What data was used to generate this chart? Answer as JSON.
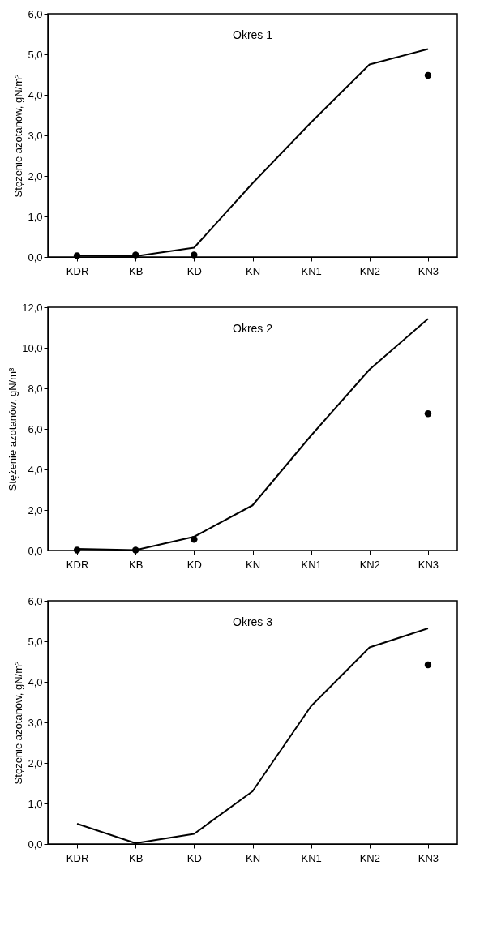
{
  "chart_data": [
    {
      "type": "line",
      "title": "Okres 1",
      "ylabel": "Stężenie azotanów, gN/m³",
      "categories": [
        "KDR",
        "KB",
        "KD",
        "KN",
        "KN1",
        "KN2",
        "KN3"
      ],
      "ylim": [
        0,
        6
      ],
      "yticks": [
        {
          "value": 0,
          "label": "0,0"
        },
        {
          "value": 1,
          "label": "1,0"
        },
        {
          "value": 2,
          "label": "2,0"
        },
        {
          "value": 3,
          "label": "3,0"
        },
        {
          "value": 4,
          "label": "4,0"
        },
        {
          "value": 5,
          "label": "5,0"
        },
        {
          "value": 6,
          "label": "6,0"
        }
      ],
      "grid": false,
      "series": [
        {
          "type": "line",
          "color": "#000000",
          "values": [
            0.03,
            0.02,
            0.23,
            1.82,
            3.32,
            4.75,
            5.13
          ]
        },
        {
          "type": "scatter",
          "marker": "circle",
          "color": "#000000",
          "values": [
            0.03,
            0.05,
            0.05,
            null,
            null,
            null,
            4.48
          ]
        }
      ]
    },
    {
      "type": "line",
      "title": "Okres 2",
      "ylabel": "Stężenie azotanów, gN/m³",
      "categories": [
        "KDR",
        "KB",
        "KD",
        "KN",
        "KN1",
        "KN2",
        "KN3"
      ],
      "ylim": [
        0,
        12
      ],
      "yticks": [
        {
          "value": 0,
          "label": "0,0"
        },
        {
          "value": 2,
          "label": "2,0"
        },
        {
          "value": 4,
          "label": "4,0"
        },
        {
          "value": 6,
          "label": "6,0"
        },
        {
          "value": 8,
          "label": "8,0"
        },
        {
          "value": 10,
          "label": "10,0"
        },
        {
          "value": 12,
          "label": "12,0"
        }
      ],
      "grid": false,
      "series": [
        {
          "type": "line",
          "color": "#000000",
          "values": [
            0.08,
            0.02,
            0.68,
            2.23,
            5.67,
            8.93,
            11.43
          ]
        },
        {
          "type": "scatter",
          "marker": "circle",
          "color": "#000000",
          "values": [
            0.02,
            0.02,
            0.55,
            null,
            null,
            null,
            6.75
          ]
        }
      ]
    },
    {
      "type": "line",
      "title": "Okres 3",
      "ylabel": "Stężenie azotanów, gN/m³",
      "categories": [
        "KDR",
        "KB",
        "KD",
        "KN",
        "KN1",
        "KN2",
        "KN3"
      ],
      "ylim": [
        0,
        6
      ],
      "yticks": [
        {
          "value": 0,
          "label": "0,0"
        },
        {
          "value": 1,
          "label": "1,0"
        },
        {
          "value": 2,
          "label": "2,0"
        },
        {
          "value": 3,
          "label": "3,0"
        },
        {
          "value": 4,
          "label": "4,0"
        },
        {
          "value": 5,
          "label": "5,0"
        },
        {
          "value": 6,
          "label": "6,0"
        }
      ],
      "grid": false,
      "series": [
        {
          "type": "line",
          "color": "#000000",
          "values": [
            0.5,
            0.02,
            0.25,
            1.3,
            3.4,
            4.85,
            5.32
          ]
        },
        {
          "type": "scatter",
          "marker": "circle",
          "color": "#000000",
          "values": [
            null,
            null,
            null,
            null,
            null,
            null,
            4.42
          ]
        }
      ]
    }
  ]
}
